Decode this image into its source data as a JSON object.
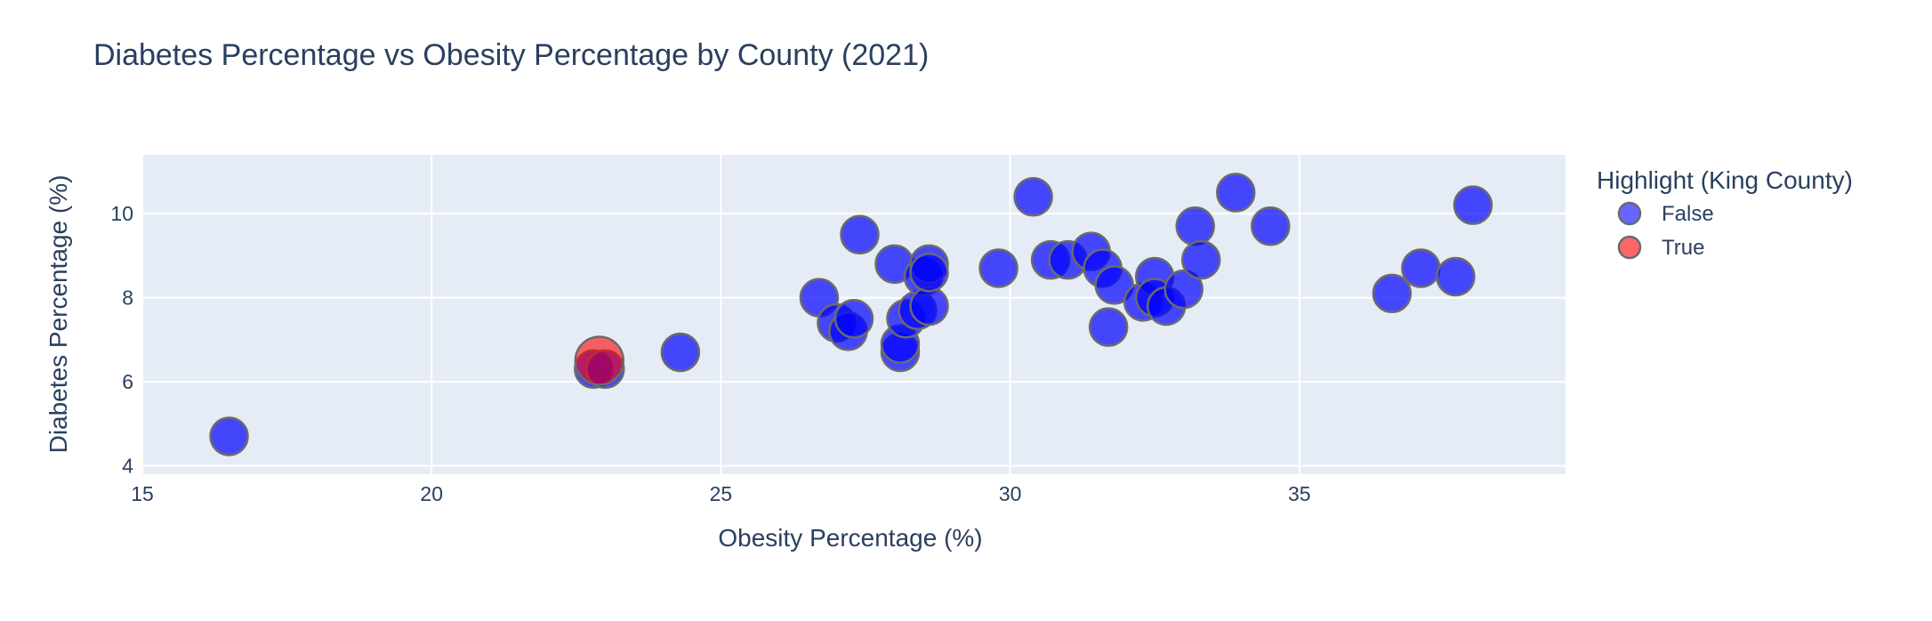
{
  "chart_data": {
    "type": "scatter",
    "title": "Diabetes Percentage vs Obesity Percentage by County (2021)",
    "xlabel": "Obesity Percentage (%)",
    "ylabel": "Diabetes Percentage (%)",
    "xlim": [
      15,
      39.6
    ],
    "ylim": [
      3.8,
      11.4
    ],
    "xticks": [
      15,
      20,
      25,
      30,
      35
    ],
    "yticks": [
      4,
      6,
      8,
      10
    ],
    "grid": true,
    "legend": {
      "title": "Highlight (King County)",
      "placement": "right",
      "entries": [
        {
          "label": "False",
          "color": "#0000ff"
        },
        {
          "label": "True",
          "color": "#ff0000"
        }
      ]
    },
    "colors": {
      "plot_bg": "#e5ecf6",
      "grid": "#ffffff",
      "false_marker": "#0000ff",
      "true_marker": "#ff0000",
      "marker_outline": "#6b6b6b"
    },
    "series": [
      {
        "name": "False",
        "x": [
          16.5,
          22.8,
          23.0,
          24.3,
          26.7,
          27.0,
          27.2,
          27.3,
          27.4,
          28.0,
          28.1,
          28.1,
          28.2,
          28.4,
          28.5,
          28.6,
          28.6,
          28.6,
          29.8,
          30.4,
          30.7,
          31.0,
          31.4,
          31.6,
          31.7,
          31.8,
          32.3,
          32.5,
          32.5,
          32.7,
          33.0,
          33.2,
          33.3,
          33.9,
          34.5,
          36.6,
          37.1,
          37.7,
          38.0
        ],
        "y": [
          4.7,
          6.3,
          6.3,
          6.7,
          8.0,
          7.4,
          7.2,
          7.5,
          9.5,
          8.8,
          6.7,
          6.9,
          7.5,
          7.7,
          8.5,
          8.8,
          7.8,
          8.6,
          8.7,
          10.4,
          8.9,
          8.9,
          9.1,
          8.7,
          7.3,
          8.3,
          7.9,
          8.5,
          8.0,
          7.8,
          8.2,
          9.7,
          8.9,
          10.5,
          9.7,
          8.1,
          8.7,
          8.5,
          10.2
        ]
      },
      {
        "name": "True",
        "x": [
          22.9
        ],
        "y": [
          6.5
        ]
      }
    ]
  }
}
